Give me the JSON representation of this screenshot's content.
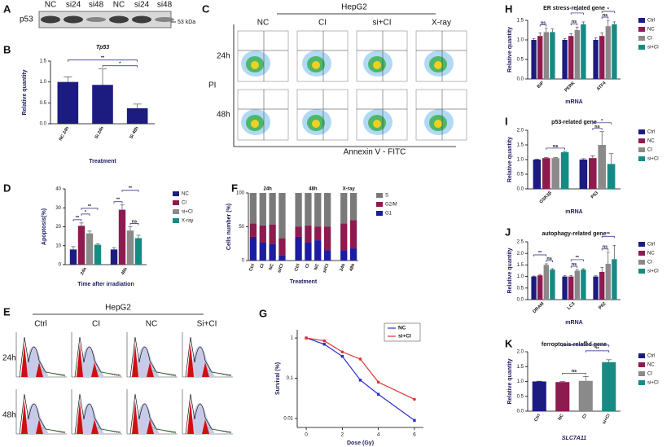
{
  "blot": {
    "panel": "A",
    "protein": "p53",
    "lanes": [
      "NC",
      "si24",
      "si48",
      "NC",
      "si24",
      "si48"
    ],
    "marker": "53 kDa"
  },
  "flow": {
    "panel": "C",
    "cell_line": "HepG2",
    "columns": [
      "NC",
      "CI",
      "si+CI",
      "X-ray"
    ],
    "rows": [
      "24h",
      "48h"
    ],
    "ylabel": "PI",
    "xlabel": "Annexin V - FITC"
  },
  "cell_cycle": {
    "panel": "E",
    "cell_line": "HepG2",
    "columns": [
      "Ctrl",
      "CI",
      "NC",
      "Si+CI"
    ],
    "rows": [
      "24h",
      "48h"
    ]
  },
  "chart_data": [
    {
      "panel": "B",
      "type": "bar",
      "title": "Tp53",
      "categories": [
        "NC 24h",
        "Si 24h",
        "Si 48h"
      ],
      "values": [
        1.0,
        0.93,
        0.37
      ],
      "errors": [
        0.12,
        0.38,
        0.1
      ],
      "color": "#1c1c80",
      "ylim": [
        0,
        1.5
      ],
      "yticks": [
        {
          "value": 0,
          "label": "0.0"
        },
        0.5,
        {
          "value": 1,
          "label": "1.0"
        },
        1.5
      ],
      "ylabel": "Relative quantity",
      "xlabel": "Treatment",
      "brackets": [
        {
          "label": "*",
          "from": 1,
          "to": 2
        },
        {
          "label": "**",
          "from": 0,
          "to": 2
        }
      ]
    },
    {
      "panel": "D",
      "type": "bar",
      "categories": [
        "24h",
        "48h"
      ],
      "series": [
        {
          "name": "NC",
          "color": "#1c1c80",
          "values": [
            8,
            8
          ],
          "errors": [
            1.5,
            1
          ]
        },
        {
          "name": "CI",
          "color": "#8e1b4f",
          "values": [
            20.5,
            29
          ],
          "errors": [
            1.5,
            2.5
          ]
        },
        {
          "name": "si+CI",
          "color": "#8a8a8a",
          "values": [
            16.5,
            18
          ],
          "errors": [
            1.2,
            2
          ]
        },
        {
          "name": "X-ray",
          "color": "#188a84",
          "values": [
            10.5,
            14
          ],
          "errors": [
            0.5,
            1.5
          ]
        }
      ],
      "ylim": [
        0,
        40
      ],
      "yticks": [
        0,
        10,
        20,
        30,
        40
      ],
      "ylabel": "Apoptosis(%)",
      "xlabel": "Time after irradiation",
      "legend": true,
      "brackets": [
        {
          "label": "**",
          "category": 0,
          "from": 0,
          "to": 1
        },
        {
          "label": "*",
          "category": 0,
          "from": 1,
          "to": 2
        },
        {
          "label": "**",
          "category": 0,
          "from": 1,
          "to": 3
        },
        {
          "label": "**",
          "category": 1,
          "from": 0,
          "to": 1
        },
        {
          "label": "ns",
          "category": 1,
          "from": 2,
          "to": 3
        },
        {
          "label": "**",
          "category": 1,
          "from": 1,
          "to": 3
        }
      ]
    },
    {
      "panel": "F",
      "type": "stacked_bar",
      "groups": [
        {
          "name": "24h",
          "categories": [
            "Ctrl",
            "CI",
            "NC",
            "si/CI"
          ]
        },
        {
          "name": "48h",
          "categories": [
            "Ctrl",
            "CI",
            "NC",
            "si/CI"
          ]
        },
        {
          "name": "X-ray",
          "categories": [
            "24h",
            "48h"
          ]
        }
      ],
      "series": [
        {
          "name": "G1",
          "color": "#1c1ca0",
          "values": [
            35,
            27,
            25,
            8,
            35,
            27,
            30,
            15,
            15,
            18
          ]
        },
        {
          "name": "G2/M",
          "color": "#8e1b4f",
          "values": [
            20,
            25,
            28,
            25,
            15,
            25,
            20,
            35,
            40,
            42
          ]
        },
        {
          "name": "S",
          "color": "#7a7a7a",
          "values": [
            45,
            48,
            47,
            67,
            50,
            48,
            50,
            50,
            45,
            40
          ]
        }
      ],
      "ylim": [
        0,
        100
      ],
      "yticks": [
        0,
        50,
        100
      ],
      "ylabel": "Cells number (%)",
      "xlabel": "Treatment",
      "legend": true
    },
    {
      "panel": "G",
      "type": "line",
      "x": [
        0,
        1,
        2,
        3,
        4,
        6
      ],
      "series": [
        {
          "name": "NC",
          "color": "#2b2bd0",
          "values": [
            1,
            0.7,
            0.35,
            0.09,
            0.04,
            0.009
          ]
        },
        {
          "name": "si+CI",
          "color": "#e03535",
          "values": [
            1,
            0.85,
            0.45,
            0.3,
            0.08,
            0.03
          ]
        }
      ],
      "xlim": [
        -0.5,
        6.5
      ],
      "xticks": [
        0,
        2,
        4,
        6
      ],
      "ylim": [
        0.006,
        1.6
      ],
      "yticks": [
        0.01,
        0.1,
        1
      ],
      "log_y": true,
      "ylabel": "Survival (%)",
      "xlabel": "Dose (Gy)",
      "legend": "upper right"
    },
    {
      "panel": "H",
      "type": "bar",
      "title": "ER stress-related gene",
      "categories": [
        "BiP",
        "PERK",
        "ATF4"
      ],
      "series": [
        {
          "name": "Ctrl",
          "color": "#1c1c80",
          "values": [
            1,
            1,
            1
          ],
          "errors": [
            0.03,
            0.03,
            0.05
          ]
        },
        {
          "name": "NC",
          "color": "#8e1b4f",
          "values": [
            1.1,
            1.1,
            1.1
          ],
          "errors": [
            0.08,
            0.06,
            0.08
          ]
        },
        {
          "name": "CI",
          "color": "#8a8a8a",
          "values": [
            1.2,
            1.25,
            1.35
          ],
          "errors": [
            0.1,
            0.08,
            0.15
          ]
        },
        {
          "name": "si+CI",
          "color": "#188a84",
          "values": [
            1.2,
            1.4,
            1.4
          ],
          "errors": [
            0.08,
            0.06,
            0.06
          ]
        }
      ],
      "ylim": [
        0,
        1.5
      ],
      "yticks": [
        {
          "value": 0,
          "label": "0.0"
        },
        0.5,
        {
          "value": 1,
          "label": "1.0"
        },
        1.5
      ],
      "ylabel": "Relative quantity",
      "xlabel": "mRNA",
      "legend": true,
      "brackets": [
        {
          "label": "ns",
          "category": 0,
          "from": 1,
          "to": 2
        },
        {
          "label": "ns",
          "category": 1,
          "from": 1,
          "to": 2
        },
        {
          "label": "*",
          "category": 1,
          "from": 1,
          "to": 3
        },
        {
          "label": "ns",
          "category": 2,
          "from": 1,
          "to": 2
        },
        {
          "label": "*",
          "category": 2,
          "from": 1,
          "to": 3
        }
      ]
    },
    {
      "panel": "I",
      "type": "bar",
      "title": "p53-related gene",
      "categories": [
        "GSK3β",
        "P53"
      ],
      "series": [
        {
          "name": "Ctrl",
          "color": "#1c1c80",
          "values": [
            1,
            1
          ],
          "errors": [
            0.02,
            0.03
          ]
        },
        {
          "name": "NC",
          "color": "#8e1b4f",
          "values": [
            1.05,
            1.05
          ],
          "errors": [
            0.02,
            0.08
          ]
        },
        {
          "name": "CI",
          "color": "#8a8a8a",
          "values": [
            1.05,
            1.5
          ],
          "errors": [
            0.02,
            0.45
          ]
        },
        {
          "name": "si+CI",
          "color": "#188a84",
          "values": [
            1.25,
            0.85
          ],
          "errors": [
            0.03,
            0.35
          ]
        }
      ],
      "ylim": [
        0,
        2
      ],
      "yticks": [
        {
          "value": 0,
          "label": "0.0"
        },
        0.5,
        {
          "value": 1,
          "label": "1.0"
        },
        1.5,
        {
          "value": 2,
          "label": "2.0"
        }
      ],
      "ylabel": "Relative quantity",
      "xlabel": "mRNA",
      "legend": true,
      "brackets": [
        {
          "label": "ns",
          "category": 0,
          "from": 1,
          "to": 3
        },
        {
          "label": "ns",
          "category": 1,
          "from": 1,
          "to": 2
        },
        {
          "label": "*",
          "category": 1,
          "from": 1,
          "to": 3
        }
      ]
    },
    {
      "panel": "J",
      "type": "bar",
      "title": "autophagy-related gene",
      "categories": [
        "DRAM",
        "LC3",
        "P62"
      ],
      "series": [
        {
          "name": "Ctrl",
          "color": "#1c1c80",
          "values": [
            1,
            1,
            1
          ],
          "errors": [
            0.02,
            0.05,
            0.03
          ]
        },
        {
          "name": "NC",
          "color": "#8e1b4f",
          "values": [
            1.05,
            1,
            1.2
          ],
          "errors": [
            0.04,
            0.05,
            0.2
          ]
        },
        {
          "name": "CI",
          "color": "#8a8a8a",
          "values": [
            1.5,
            1.25,
            1.55
          ],
          "errors": [
            0.05,
            0.05,
            0.5
          ]
        },
        {
          "name": "si+CI",
          "color": "#188a84",
          "values": [
            1.3,
            1.3,
            1.75
          ],
          "errors": [
            0.04,
            0.04,
            0.6
          ]
        }
      ],
      "ylim": [
        0,
        2.5
      ],
      "yticks": [
        {
          "value": 0,
          "label": "0.0"
        },
        0.5,
        {
          "value": 1,
          "label": "1.0"
        },
        1.5,
        {
          "value": 2,
          "label": "2.0"
        },
        2.5
      ],
      "ylabel": "Relative quantity",
      "xlabel": "mRNA",
      "legend": true,
      "brackets": [
        {
          "label": "ns",
          "category": 0,
          "from": 2,
          "to": 3
        },
        {
          "label": "**",
          "category": 0,
          "from": 0,
          "to": 2
        },
        {
          "label": "ns",
          "category": 1,
          "from": 1,
          "to": 2
        },
        {
          "label": "**",
          "category": 1,
          "from": 1,
          "to": 3
        },
        {
          "label": "ns",
          "category": 2,
          "from": 1,
          "to": 2
        },
        {
          "label": "**",
          "category": 2,
          "from": 1,
          "to": 3
        }
      ]
    },
    {
      "panel": "K",
      "type": "bar",
      "title": "ferroptosis-related gene",
      "categories": [
        "Ctrl",
        "NC",
        "CI",
        "si+CI"
      ],
      "values": [
        1,
        0.98,
        1.02,
        1.65
      ],
      "errors": [
        0.01,
        0.02,
        0.15,
        0.08
      ],
      "colors": [
        "#1c1c80",
        "#8e1b4f",
        "#8a8a8a",
        "#188a84"
      ],
      "ylim": [
        0,
        2
      ],
      "yticks": [
        {
          "value": 0,
          "label": "0.0"
        },
        0.5,
        {
          "value": 1,
          "label": "1.0"
        },
        1.5,
        {
          "value": 2,
          "label": "2.0"
        }
      ],
      "ylabel": "Relative quantity",
      "xlabel": "SLC7A11",
      "legend": true,
      "brackets": [
        {
          "label": "ns",
          "from": 1,
          "to": 2
        },
        {
          "label": "**",
          "from": 2,
          "to": 3
        },
        {
          "label": "**",
          "from": 1,
          "to": 3
        }
      ]
    }
  ]
}
